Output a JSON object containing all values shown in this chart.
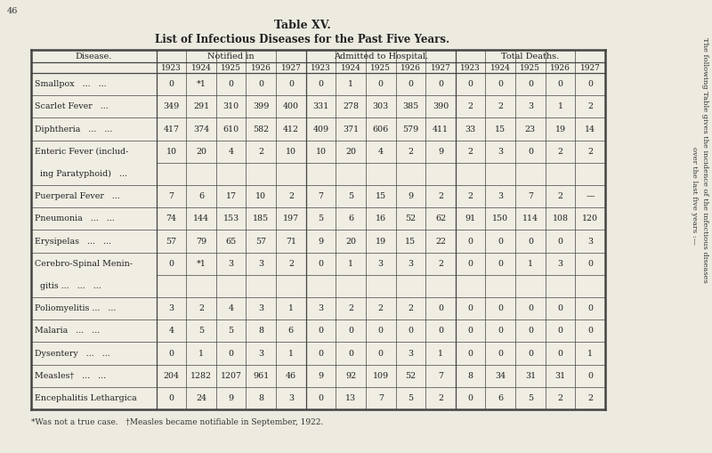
{
  "title1": "Table XV.",
  "title2": "List of Infectious Diseases for the Past Five Years.",
  "bg_color": "#edeae0",
  "table_bg": "#f0ede3",
  "header1": "Disease.",
  "header2": "Notified in",
  "header3": "Admitted to Hospital.",
  "header4": "Total Deaths.",
  "years": [
    "1923",
    "1924",
    "1925",
    "1926",
    "1927"
  ],
  "notified": [
    [
      "0",
      "*1",
      "0",
      "0",
      "0"
    ],
    [
      "349",
      "291",
      "310",
      "399",
      "400"
    ],
    [
      "417",
      "374",
      "610",
      "582",
      "412"
    ],
    [
      "10",
      "20",
      "4",
      "2",
      "10"
    ],
    [
      "7",
      "6",
      "17",
      "10",
      "2"
    ],
    [
      "74",
      "144",
      "153",
      "185",
      "197"
    ],
    [
      "57",
      "79",
      "65",
      "57",
      "71"
    ],
    [
      "0",
      "*1",
      "3",
      "3",
      "2"
    ],
    [
      "3",
      "2",
      "4",
      "3",
      "1"
    ],
    [
      "4",
      "5",
      "5",
      "8",
      "6"
    ],
    [
      "0",
      "1",
      "0",
      "3",
      "1"
    ],
    [
      "204",
      "1282",
      "1207",
      "961",
      "46"
    ],
    [
      "0",
      "24",
      "9",
      "8",
      "3"
    ]
  ],
  "admitted": [
    [
      "0",
      "1",
      "0",
      "0",
      "0"
    ],
    [
      "331",
      "278",
      "303",
      "385",
      "390"
    ],
    [
      "409",
      "371",
      "606",
      "579",
      "411"
    ],
    [
      "10",
      "20",
      "4",
      "2",
      "9"
    ],
    [
      "7",
      "5",
      "15",
      "9",
      "2"
    ],
    [
      "5",
      "6",
      "16",
      "52",
      "62"
    ],
    [
      "9",
      "20",
      "19",
      "15",
      "22"
    ],
    [
      "0",
      "1",
      "3",
      "3",
      "2"
    ],
    [
      "3",
      "2",
      "2",
      "2",
      "0"
    ],
    [
      "0",
      "0",
      "0",
      "0",
      "0"
    ],
    [
      "0",
      "0",
      "0",
      "3",
      "1"
    ],
    [
      "9",
      "92",
      "109",
      "52",
      "7"
    ],
    [
      "0",
      "13",
      "7",
      "5",
      "2"
    ]
  ],
  "deaths": [
    [
      "0",
      "0",
      "0",
      "0",
      "0"
    ],
    [
      "2",
      "2",
      "3",
      "1",
      "2"
    ],
    [
      "33",
      "15",
      "23",
      "19",
      "14"
    ],
    [
      "2",
      "3",
      "0",
      "2",
      "2"
    ],
    [
      "2",
      "3",
      "7",
      "2",
      "—"
    ],
    [
      "91",
      "150",
      "114",
      "108",
      "120"
    ],
    [
      "0",
      "0",
      "0",
      "0",
      "3"
    ],
    [
      "0",
      "0",
      "1",
      "3",
      "0"
    ],
    [
      "0",
      "0",
      "0",
      "0",
      "0"
    ],
    [
      "0",
      "0",
      "0",
      "0",
      "0"
    ],
    [
      "0",
      "0",
      "0",
      "0",
      "1"
    ],
    [
      "8",
      "34",
      "31",
      "31",
      "0"
    ],
    [
      "0",
      "6",
      "5",
      "2",
      "2"
    ]
  ],
  "disease_rows": [
    [
      0,
      "Smallpox   ...   ..."
    ],
    [
      0,
      "Scarlet Fever   ..."
    ],
    [
      0,
      "Diphtheria   ...   ..."
    ],
    [
      0,
      "Enteric Fever (includ-"
    ],
    [
      1,
      "  ing Paratyphoid)   ..."
    ],
    [
      0,
      "Puerperal Fever   ..."
    ],
    [
      0,
      "Pneumonia   ...   ..."
    ],
    [
      0,
      "Erysipelas   ...   ..."
    ],
    [
      0,
      "Cerebro-Spinal Menin-"
    ],
    [
      1,
      "  gitis ...   ...   ..."
    ],
    [
      0,
      "Poliomyelitis ...   ..."
    ],
    [
      0,
      "Malaria   ...   ..."
    ],
    [
      0,
      "Dysentery   ...   ..."
    ],
    [
      0,
      "Measles†   ...   ..."
    ],
    [
      0,
      "Encephalitis Lethargica"
    ]
  ],
  "data_to_vrow": [
    0,
    1,
    2,
    3,
    5,
    6,
    7,
    8,
    10,
    11,
    12,
    13,
    14
  ],
  "footnote": "*Was not a true case.   †Measles became notifiable in September, 1922.",
  "side_text1": "The following Table gives the incidence of the infectious diseases",
  "side_text2": "over the last five years :—",
  "page_number": "46"
}
